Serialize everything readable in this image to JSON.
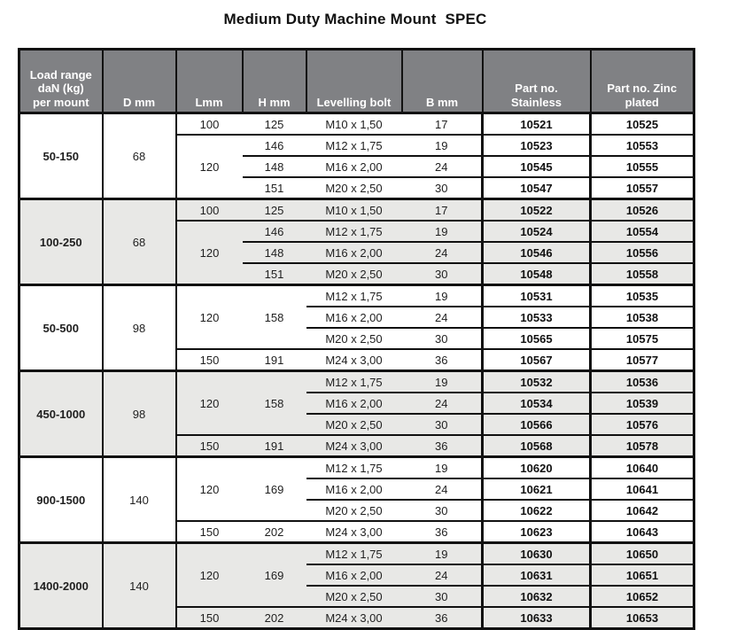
{
  "title": "Medium Duty Machine Mount  SPEC",
  "colors": {
    "header_bg": "#808184",
    "shaded_row_bg": "#e8e8e6",
    "row_bg": "#ffffff",
    "border": "#111111",
    "header_text": "#ffffff",
    "text": "#1f1f1f"
  },
  "table": {
    "headers": [
      "Load range\ndaN (kg)\nper mount",
      "D mm",
      "Lmm",
      "H mm",
      "Levelling bolt",
      "B mm",
      "Part no.\nStainless",
      "Part no. Zinc\nplated"
    ],
    "groups": [
      {
        "load_range": "50-150",
        "d_mm": "68",
        "shaded": false,
        "rows": [
          {
            "l_mm": "100",
            "h_mm": "125",
            "bolt": "M10 x 1,50",
            "b_mm": "17",
            "stainless": "10521",
            "zinc": "10525"
          },
          {
            "l_mm": "120",
            "h_mm": "146",
            "bolt": "M12 x 1,75",
            "b_mm": "19",
            "stainless": "10523",
            "zinc": "10553"
          },
          {
            "h_mm": "148",
            "bolt": "M16 x 2,00",
            "b_mm": "24",
            "stainless": "10545",
            "zinc": "10555"
          },
          {
            "h_mm": "151",
            "bolt": "M20 x 2,50",
            "b_mm": "30",
            "stainless": "10547",
            "zinc": "10557"
          }
        ]
      },
      {
        "load_range": "100-250",
        "d_mm": "68",
        "shaded": true,
        "rows": [
          {
            "l_mm": "100",
            "h_mm": "125",
            "bolt": "M10 x 1,50",
            "b_mm": "17",
            "stainless": "10522",
            "zinc": "10526"
          },
          {
            "l_mm": "120",
            "h_mm": "146",
            "bolt": "M12 x 1,75",
            "b_mm": "19",
            "stainless": "10524",
            "zinc": "10554"
          },
          {
            "h_mm": "148",
            "bolt": "M16 x 2,00",
            "b_mm": "24",
            "stainless": "10546",
            "zinc": "10556"
          },
          {
            "h_mm": "151",
            "bolt": "M20 x 2,50",
            "b_mm": "30",
            "stainless": "10548",
            "zinc": "10558"
          }
        ]
      },
      {
        "load_range": "50-500",
        "d_mm": "98",
        "shaded": false,
        "rows": [
          {
            "l_mm": "120",
            "h_mm": "158",
            "bolt": "M12 x 1,75",
            "b_mm": "19",
            "stainless": "10531",
            "zinc": "10535"
          },
          {
            "bolt": "M16 x 2,00",
            "b_mm": "24",
            "stainless": "10533",
            "zinc": "10538"
          },
          {
            "bolt": "M20 x 2,50",
            "b_mm": "30",
            "stainless": "10565",
            "zinc": "10575"
          },
          {
            "l_mm": "150",
            "h_mm": "191",
            "bolt": "M24 x 3,00",
            "b_mm": "36",
            "stainless": "10567",
            "zinc": "10577"
          }
        ]
      },
      {
        "load_range": "450-1000",
        "d_mm": "98",
        "shaded": true,
        "rows": [
          {
            "l_mm": "120",
            "h_mm": "158",
            "bolt": "M12 x 1,75",
            "b_mm": "19",
            "stainless": "10532",
            "zinc": "10536"
          },
          {
            "bolt": "M16 x 2,00",
            "b_mm": "24",
            "stainless": "10534",
            "zinc": "10539"
          },
          {
            "bolt": "M20 x 2,50",
            "b_mm": "30",
            "stainless": "10566",
            "zinc": "10576"
          },
          {
            "l_mm": "150",
            "h_mm": "191",
            "bolt": "M24 x 3,00",
            "b_mm": "36",
            "stainless": "10568",
            "zinc": "10578"
          }
        ]
      },
      {
        "load_range": "900-1500",
        "d_mm": "140",
        "shaded": false,
        "rows": [
          {
            "l_mm": "120",
            "h_mm": "169",
            "bolt": "M12 x 1,75",
            "b_mm": "19",
            "stainless": "10620",
            "zinc": "10640"
          },
          {
            "bolt": "M16 x 2,00",
            "b_mm": "24",
            "stainless": "10621",
            "zinc": "10641"
          },
          {
            "bolt": "M20 x 2,50",
            "b_mm": "30",
            "stainless": "10622",
            "zinc": "10642"
          },
          {
            "l_mm": "150",
            "h_mm": "202",
            "bolt": "M24 x 3,00",
            "b_mm": "36",
            "stainless": "10623",
            "zinc": "10643"
          }
        ]
      },
      {
        "load_range": "1400-2000",
        "d_mm": "140",
        "shaded": true,
        "rows": [
          {
            "l_mm": "120",
            "h_mm": "169",
            "bolt": "M12 x 1,75",
            "b_mm": "19",
            "stainless": "10630",
            "zinc": "10650"
          },
          {
            "bolt": "M16 x 2,00",
            "b_mm": "24",
            "stainless": "10631",
            "zinc": "10651"
          },
          {
            "bolt": "M20 x 2,50",
            "b_mm": "30",
            "stainless": "10632",
            "zinc": "10652"
          },
          {
            "l_mm": "150",
            "h_mm": "202",
            "bolt": "M24 x 3,00",
            "b_mm": "36",
            "stainless": "10633",
            "zinc": "10653"
          }
        ]
      }
    ]
  }
}
